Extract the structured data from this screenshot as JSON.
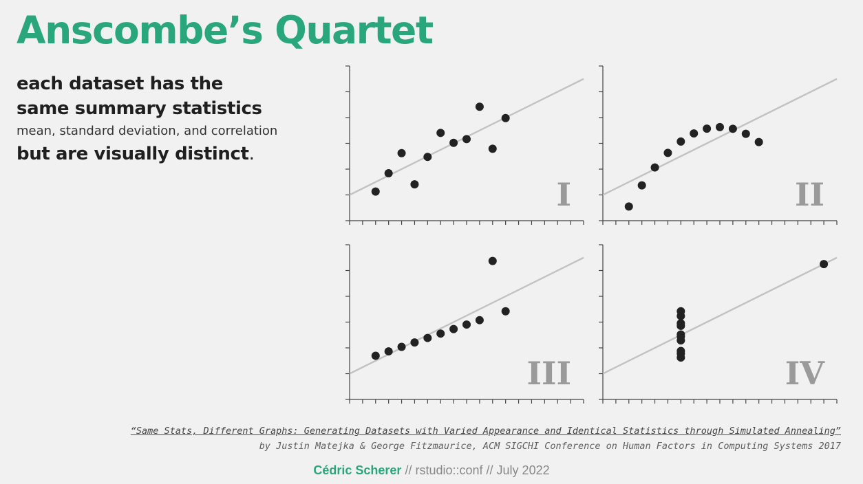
{
  "header": {
    "title": "Anscombe’s Quartet"
  },
  "description": {
    "line1": "each dataset has the",
    "line2": "same summary statistics",
    "line3": "mean, standard deviation, and correlation",
    "line4": "but are visually distinct",
    "line4_suffix": "."
  },
  "citation": {
    "title": "“Same Stats, Different Graphs: Generating Datasets with Varied Appearance and Identical Statistics through Simulated Annealing”",
    "byline": "by Justin Matejka & George Fitzmaurice, ACM SIGCHI Conference on Human Factors in Computing Systems 2017"
  },
  "footer": {
    "author": "Cédric Scherer",
    "sep1": " // ",
    "event": "rstudio::conf",
    "sep2": " // ",
    "date": "July 2022"
  },
  "colors": {
    "accent": "#2aa67c",
    "points": "#222222",
    "fit_line": "#c2c2c2",
    "roman_label": "#9a9a9a"
  },
  "chart_data": [
    {
      "type": "scatter",
      "label": "I",
      "xlim": [
        2,
        20
      ],
      "ylim": [
        2,
        14
      ],
      "fit_line": {
        "intercept": 3,
        "slope": 0.5
      },
      "x": [
        10,
        8,
        13,
        9,
        11,
        14,
        6,
        4,
        12,
        7,
        5
      ],
      "y": [
        8.04,
        6.95,
        7.58,
        8.81,
        8.33,
        9.96,
        7.24,
        4.26,
        10.84,
        4.82,
        5.68
      ]
    },
    {
      "type": "scatter",
      "label": "II",
      "xlim": [
        2,
        20
      ],
      "ylim": [
        2,
        14
      ],
      "fit_line": {
        "intercept": 3,
        "slope": 0.5
      },
      "x": [
        10,
        8,
        13,
        9,
        11,
        14,
        6,
        4,
        12,
        7,
        5
      ],
      "y": [
        9.14,
        8.14,
        8.74,
        8.77,
        9.26,
        8.1,
        6.13,
        3.1,
        9.13,
        7.26,
        4.74
      ]
    },
    {
      "type": "scatter",
      "label": "III",
      "xlim": [
        2,
        20
      ],
      "ylim": [
        2,
        14
      ],
      "fit_line": {
        "intercept": 3,
        "slope": 0.5
      },
      "x": [
        10,
        8,
        13,
        9,
        11,
        14,
        6,
        4,
        12,
        7,
        5
      ],
      "y": [
        7.46,
        6.77,
        12.74,
        7.11,
        7.81,
        8.84,
        6.08,
        5.39,
        8.15,
        6.42,
        5.73
      ]
    },
    {
      "type": "scatter",
      "label": "IV",
      "xlim": [
        2,
        20
      ],
      "ylim": [
        2,
        14
      ],
      "fit_line": {
        "intercept": 3,
        "slope": 0.5
      },
      "x": [
        8,
        8,
        8,
        8,
        8,
        8,
        8,
        19,
        8,
        8,
        8
      ],
      "y": [
        6.58,
        5.76,
        7.71,
        8.84,
        8.47,
        7.04,
        5.25,
        12.5,
        5.56,
        7.91,
        6.89
      ]
    }
  ]
}
